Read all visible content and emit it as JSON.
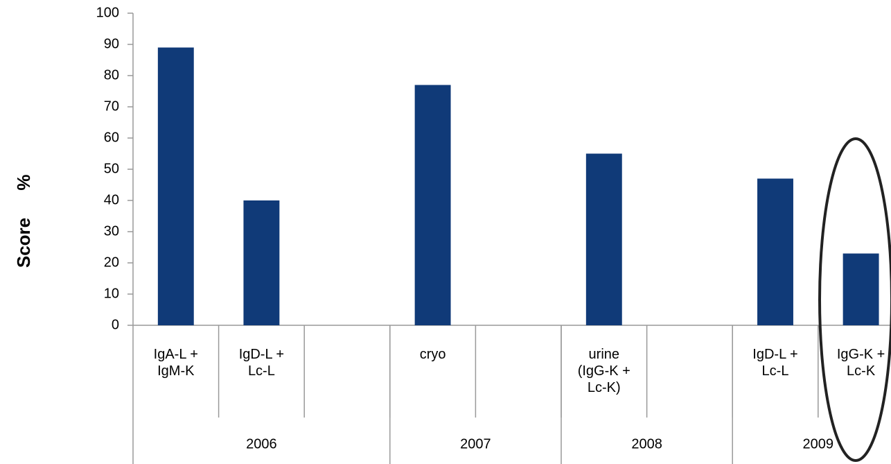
{
  "chart_data": {
    "type": "bar",
    "y_label": "Score",
    "y_unit": "%",
    "categories": [
      "IgA-L +\nIgM-K",
      "IgD-L +\nLc-L",
      null,
      "cryo",
      null,
      "urine\n(IgG-K +\nLc-K)",
      null,
      "IgD-L +\nLc-L",
      "IgG-K +\nLc-K"
    ],
    "values": [
      89,
      40,
      null,
      77,
      null,
      55,
      null,
      47,
      23
    ],
    "groups": [
      {
        "label": "2006",
        "span": 3
      },
      {
        "label": "2007",
        "span": 2
      },
      {
        "label": "2008",
        "span": 2
      },
      {
        "label": "2009",
        "span": 2
      }
    ],
    "color": "#103a78",
    "ylim": [
      0,
      100
    ],
    "yticks": [
      0,
      10,
      20,
      30,
      40,
      50,
      60,
      70,
      80,
      90,
      100
    ],
    "grid": false
  }
}
